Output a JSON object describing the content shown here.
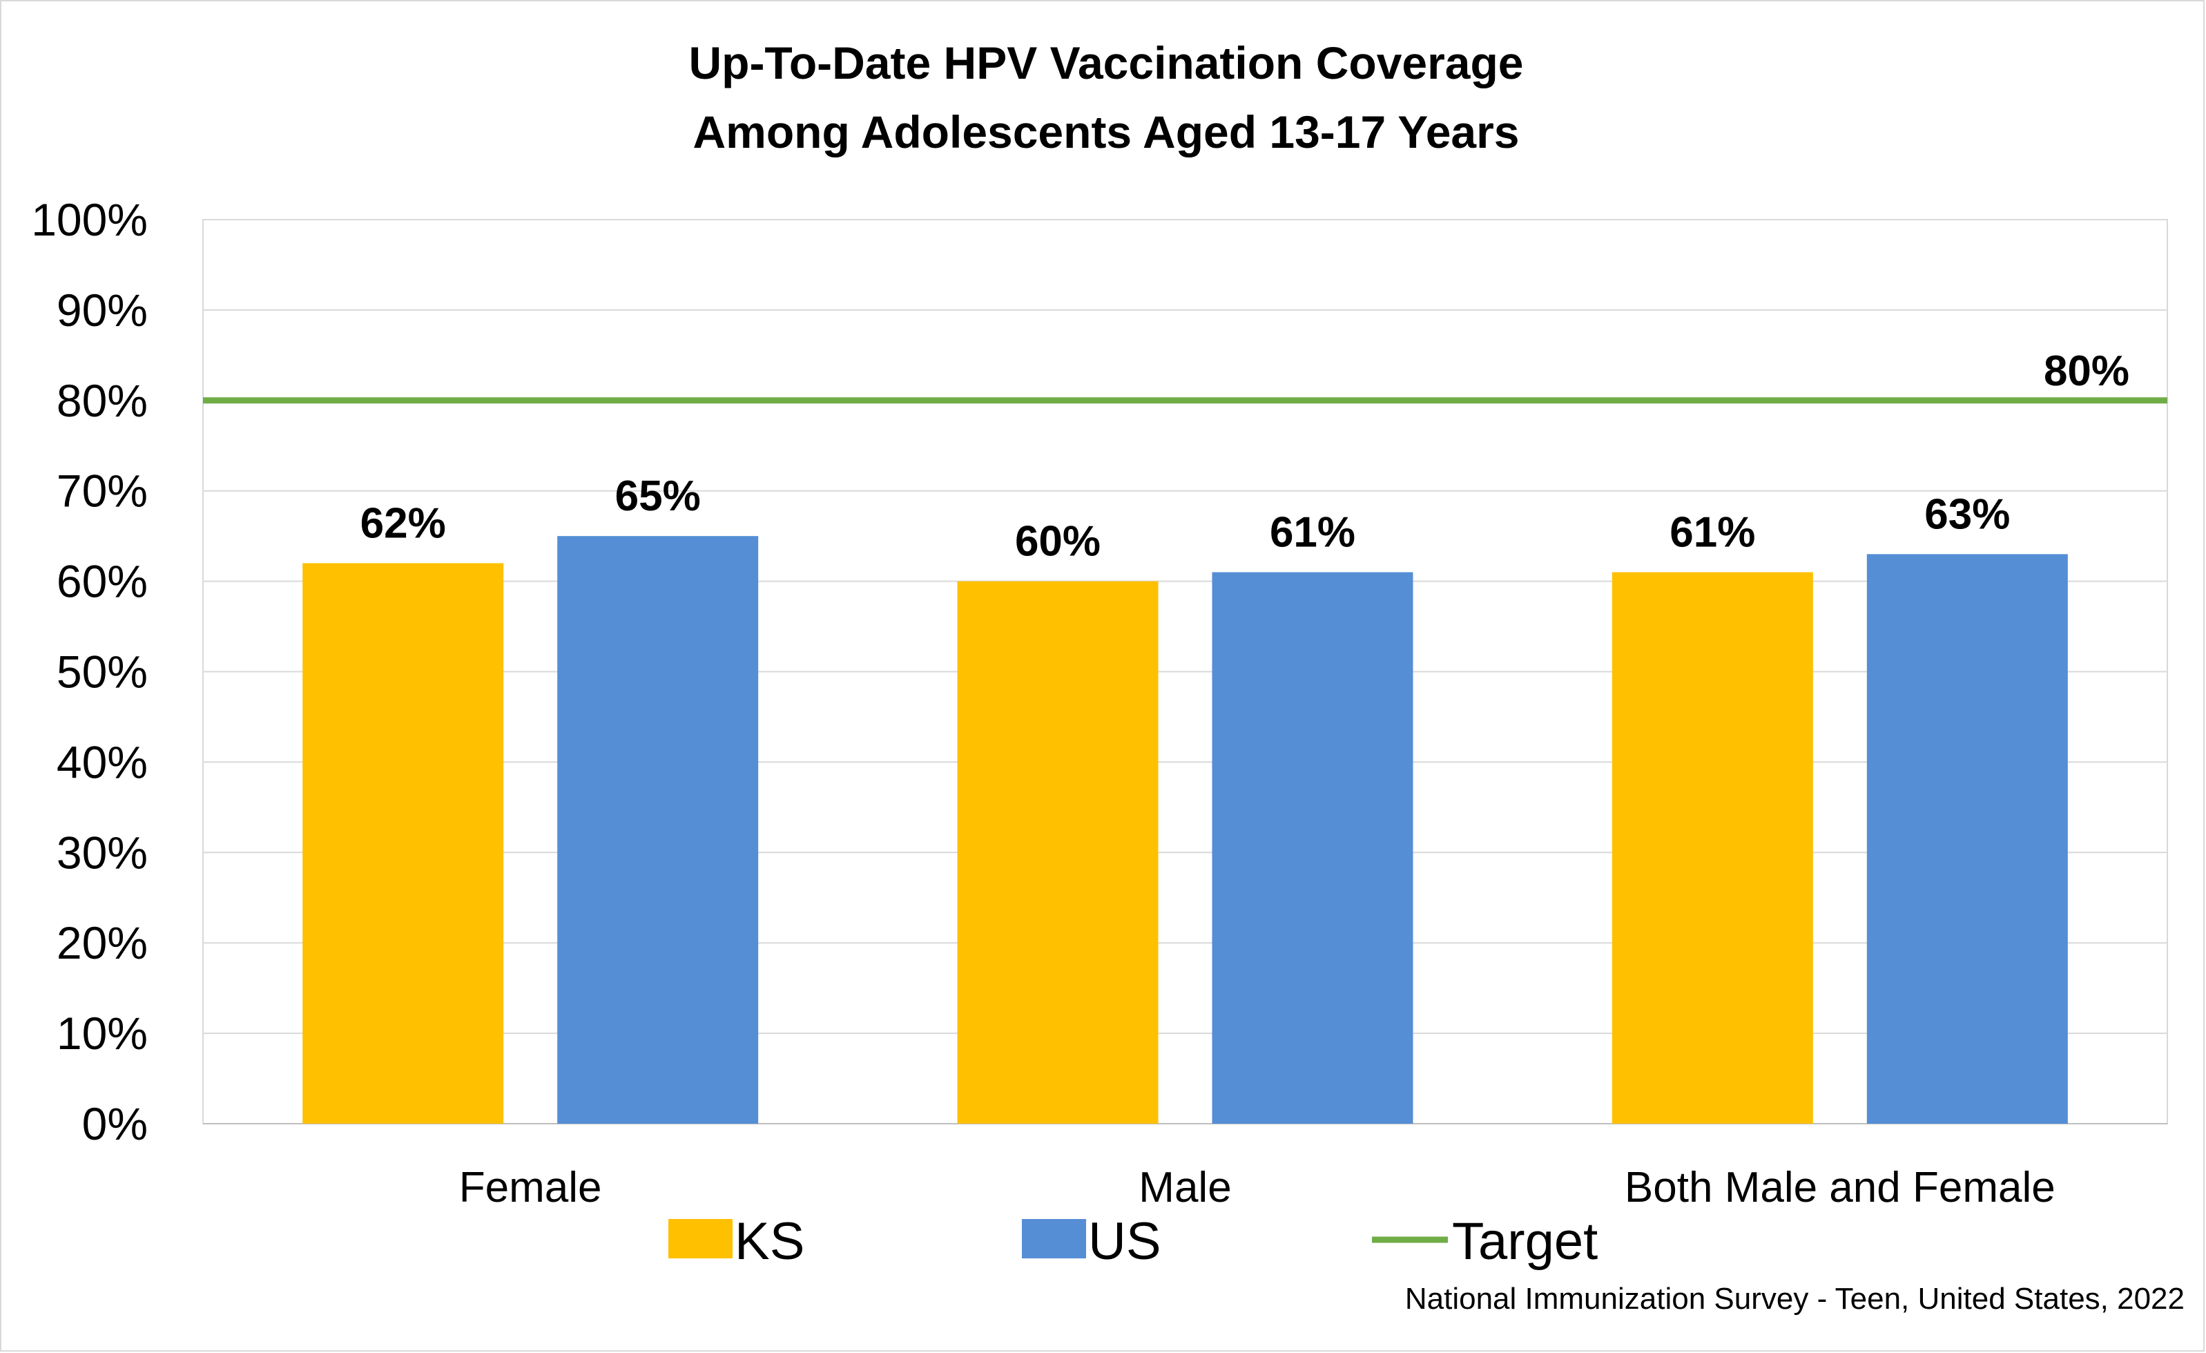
{
  "chart_data": {
    "type": "bar",
    "title": [
      "Up-To-Date HPV Vaccination Coverage",
      "Among Adolescents Aged 13-17 Years"
    ],
    "categories": [
      "Female",
      "Male",
      "Both Male and Female"
    ],
    "series": [
      {
        "name": "KS",
        "values": [
          62,
          60,
          61
        ],
        "labels": [
          "62%",
          "60%",
          "61%"
        ],
        "color": "#FFC000"
      },
      {
        "name": "US",
        "values": [
          65,
          61,
          63
        ],
        "labels": [
          "65%",
          "61%",
          "63%"
        ],
        "color": "#558ED5"
      }
    ],
    "target": {
      "name": "Target",
      "value": 80,
      "label": "80%",
      "color": "#70AD47"
    },
    "yticks": [
      "0%",
      "10%",
      "20%",
      "30%",
      "40%",
      "50%",
      "60%",
      "70%",
      "80%",
      "90%",
      "100%"
    ],
    "ylim": [
      0,
      100
    ],
    "grid": true,
    "legend_position": "bottom",
    "source": "National Immunization Survey - Teen, United States, 2022"
  }
}
